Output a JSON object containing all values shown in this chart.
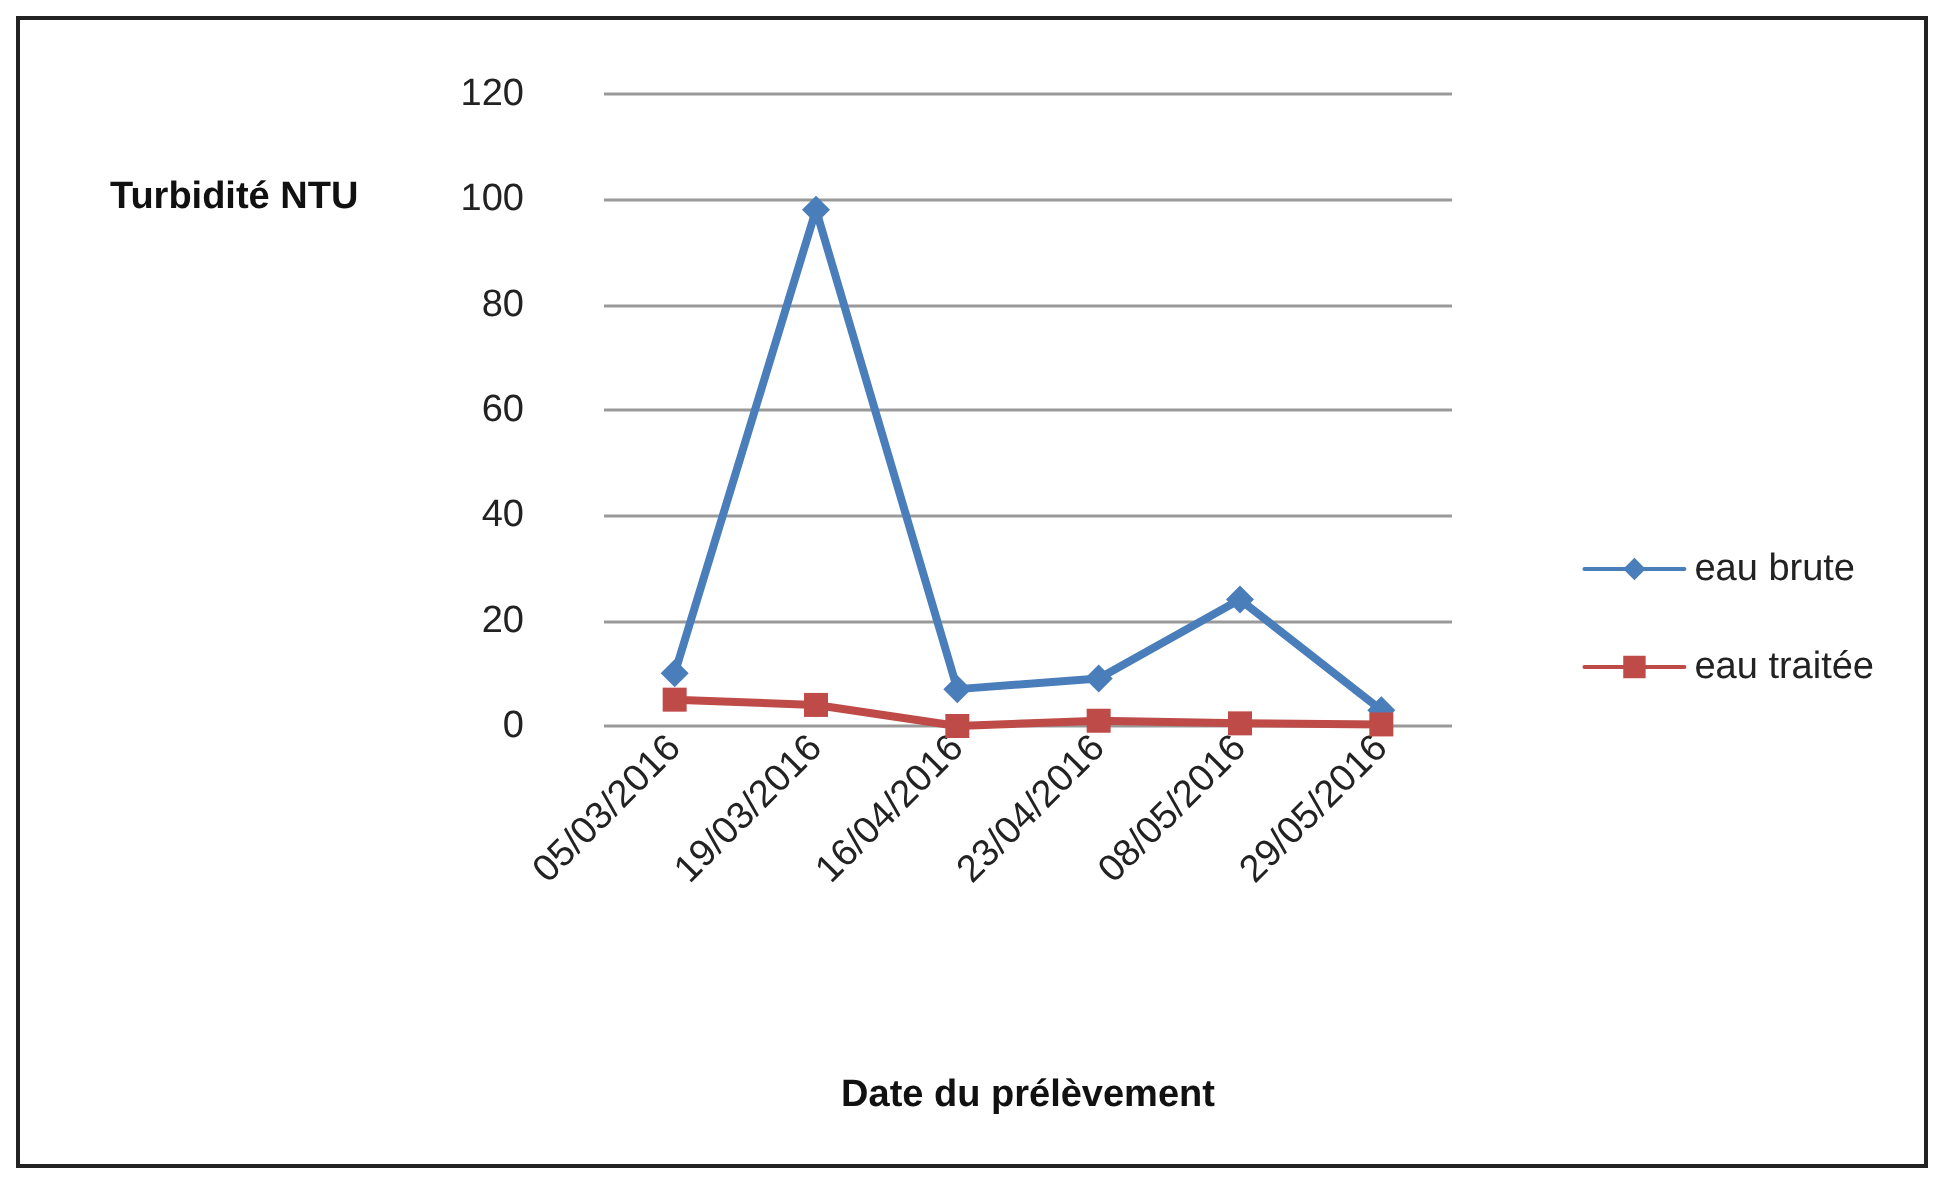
{
  "chart_data": {
    "type": "line",
    "ylabel": "Turbidité NTU",
    "xlabel": "Date du prélèvement",
    "categories": [
      "05/03/2016",
      "19/03/2016",
      "16/04/2016",
      "23/04/2016",
      "08/05/2016",
      "29/05/2016"
    ],
    "series": [
      {
        "name": "eau brute",
        "color": "#4a7ebb",
        "marker": "diamond",
        "values": [
          10,
          98,
          7,
          9,
          24,
          3
        ]
      },
      {
        "name": "eau traitée",
        "color": "#be4b48",
        "marker": "square",
        "values": [
          5,
          4,
          0,
          1,
          0.5,
          0.3
        ]
      }
    ],
    "ylim": [
      0,
      120
    ],
    "yticks": [
      0,
      20,
      40,
      60,
      80,
      100,
      120
    ],
    "grid": "y",
    "legend": "right",
    "line_style": "solid"
  }
}
